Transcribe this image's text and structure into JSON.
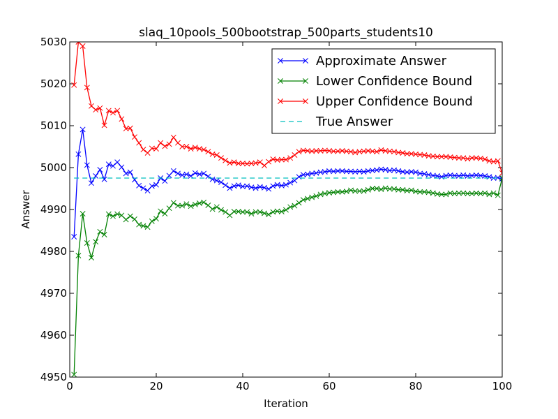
{
  "chart_data": {
    "type": "line",
    "title": "slaq_10pools_500bootstrap_500parts_students10",
    "xlabel": "Iteration",
    "ylabel": "Answer",
    "xlim": [
      0,
      100
    ],
    "ylim": [
      4950,
      5030
    ],
    "xticks": [
      "0",
      "20",
      "40",
      "60",
      "80",
      "100"
    ],
    "yticks": [
      "4950",
      "4960",
      "4970",
      "4980",
      "4990",
      "5000",
      "5010",
      "5020",
      "5030"
    ],
    "legend_position": "top-right",
    "grid": false,
    "x": [
      1,
      2,
      3,
      4,
      5,
      6,
      7,
      8,
      9,
      10,
      11,
      12,
      13,
      14,
      15,
      16,
      17,
      18,
      19,
      20,
      21,
      22,
      23,
      24,
      25,
      26,
      27,
      28,
      29,
      30,
      31,
      32,
      33,
      34,
      35,
      36,
      37,
      38,
      39,
      40,
      41,
      42,
      43,
      44,
      45,
      46,
      47,
      48,
      49,
      50,
      51,
      52,
      53,
      54,
      55,
      56,
      57,
      58,
      59,
      60,
      61,
      62,
      63,
      64,
      65,
      66,
      67,
      68,
      69,
      70,
      71,
      72,
      73,
      74,
      75,
      76,
      77,
      78,
      79,
      80,
      81,
      82,
      83,
      84,
      85,
      86,
      87,
      88,
      89,
      90,
      91,
      92,
      93,
      94,
      95,
      96,
      97,
      98,
      99,
      100
    ],
    "series": [
      {
        "name": "Approximate Answer",
        "color": "#0000ff",
        "style": "solid",
        "marker": "x",
        "values": [
          4983.5,
          5003.2,
          5009.1,
          5000.6,
          4996.3,
          4998.0,
          4999.5,
          4997.2,
          5000.8,
          5000.4,
          5001.3,
          5000.1,
          4998.6,
          4998.9,
          4997.1,
          4995.7,
          4995.1,
          4994.5,
          4995.6,
          4995.9,
          4997.5,
          4996.8,
          4998.1,
          4999.2,
          4998.6,
          4998.2,
          4998.4,
          4998.0,
          4998.7,
          4998.4,
          4998.6,
          4997.9,
          4997.2,
          4996.9,
          4996.5,
          4995.8,
          4995.1,
          4995.6,
          4995.8,
          4995.5,
          4995.6,
          4995.3,
          4995.1,
          4995.4,
          4995.2,
          4994.9,
          4995.6,
          4995.9,
          4995.7,
          4995.9,
          4996.4,
          4996.9,
          4997.8,
          4998.3,
          4998.4,
          4998.6,
          4998.7,
          4998.9,
          4999.0,
          4999.2,
          4999.1,
          4999.2,
          4999.2,
          4999.1,
          4999.1,
          4999.0,
          4999.1,
          4999.0,
          4999.2,
          4999.3,
          4999.4,
          4999.6,
          4999.5,
          4999.3,
          4999.4,
          4999.2,
          4999.0,
          4998.9,
          4999.0,
          4998.9,
          4998.6,
          4998.5,
          4998.3,
          4998.1,
          4998.0,
          4997.8,
          4998.1,
          4998.2,
          4998.1,
          4998.0,
          4998.2,
          4998.0,
          4998.1,
          4998.2,
          4998.1,
          4998.0,
          4997.8,
          4997.5,
          4997.6,
          4997.3
        ]
      },
      {
        "name": "Lower Confidence Bound",
        "color": "#008000",
        "style": "solid",
        "marker": "x",
        "values": [
          4950.6,
          4979.0,
          4989.0,
          4982.0,
          4978.5,
          4982.3,
          4984.7,
          4984.0,
          4988.9,
          4988.4,
          4988.9,
          4988.6,
          4987.6,
          4988.4,
          4987.7,
          4986.4,
          4986.1,
          4985.8,
          4987.2,
          4987.8,
          4989.6,
          4989.0,
          4990.3,
          4991.6,
          4990.9,
          4990.9,
          4991.3,
          4990.8,
          4991.2,
          4991.5,
          4991.7,
          4991.0,
          4990.1,
          4990.6,
          4989.9,
          4989.4,
          4988.6,
          4989.5,
          4989.5,
          4989.4,
          4989.4,
          4989.0,
          4989.4,
          4989.4,
          4989.1,
          4988.8,
          4989.4,
          4989.6,
          4989.5,
          4989.9,
          4990.6,
          4990.9,
          4991.6,
          4992.3,
          4992.6,
          4992.9,
          4993.2,
          4993.6,
          4993.8,
          4994.0,
          4994.1,
          4994.2,
          4994.2,
          4994.3,
          4994.6,
          4994.4,
          4994.4,
          4994.4,
          4994.7,
          4995.0,
          4995.0,
          4994.8,
          4995.1,
          4994.9,
          4994.9,
          4994.7,
          4994.7,
          4994.5,
          4994.6,
          4994.3,
          4994.2,
          4994.2,
          4994.1,
          4993.9,
          4993.7,
          4993.6,
          4993.6,
          4993.9,
          4993.8,
          4993.9,
          4993.9,
          4993.8,
          4993.8,
          4993.9,
          4993.8,
          4993.9,
          4993.6,
          4993.9,
          4993.4,
          4997.5
        ]
      },
      {
        "name": "Upper Confidence Bound",
        "color": "#ff0000",
        "style": "solid",
        "marker": "x",
        "values": [
          5019.7,
          5030.0,
          5029.0,
          5019.1,
          5014.7,
          5013.8,
          5014.2,
          5010.1,
          5013.6,
          5013.1,
          5013.6,
          5011.6,
          5009.3,
          5009.4,
          5007.3,
          5005.9,
          5004.3,
          5003.5,
          5004.6,
          5004.5,
          5005.9,
          5005.1,
          5005.6,
          5007.2,
          5005.9,
          5005.0,
          5005.0,
          5004.5,
          5004.8,
          5004.5,
          5004.3,
          5003.8,
          5003.2,
          5003.0,
          5002.3,
          5001.7,
          5001.1,
          5001.3,
          5001.0,
          5001.0,
          5000.9,
          5001.0,
          5001.1,
          5001.3,
          5000.5,
          5001.4,
          5002.0,
          5001.8,
          5001.9,
          5001.9,
          5002.3,
          5003.0,
          5003.8,
          5004.1,
          5004.0,
          5003.9,
          5004.0,
          5004.0,
          5004.1,
          5004.0,
          5003.9,
          5003.9,
          5004.0,
          5003.9,
          5003.8,
          5003.6,
          5003.8,
          5003.9,
          5004.0,
          5003.9,
          5003.8,
          5004.2,
          5004.0,
          5003.9,
          5003.8,
          5003.6,
          5003.5,
          5003.3,
          5003.3,
          5003.2,
          5003.1,
          5003.0,
          5002.8,
          5002.7,
          5002.6,
          5002.6,
          5002.6,
          5002.5,
          5002.4,
          5002.3,
          5002.3,
          5002.1,
          5002.3,
          5002.3,
          5002.2,
          5002.0,
          5001.6,
          5001.4,
          5001.6,
          4998.7
        ]
      },
      {
        "name": "True Answer",
        "color": "#00bfbf",
        "style": "dashed",
        "marker": "none",
        "x_range": [
          1,
          100
        ],
        "value": 4997.5
      }
    ]
  }
}
